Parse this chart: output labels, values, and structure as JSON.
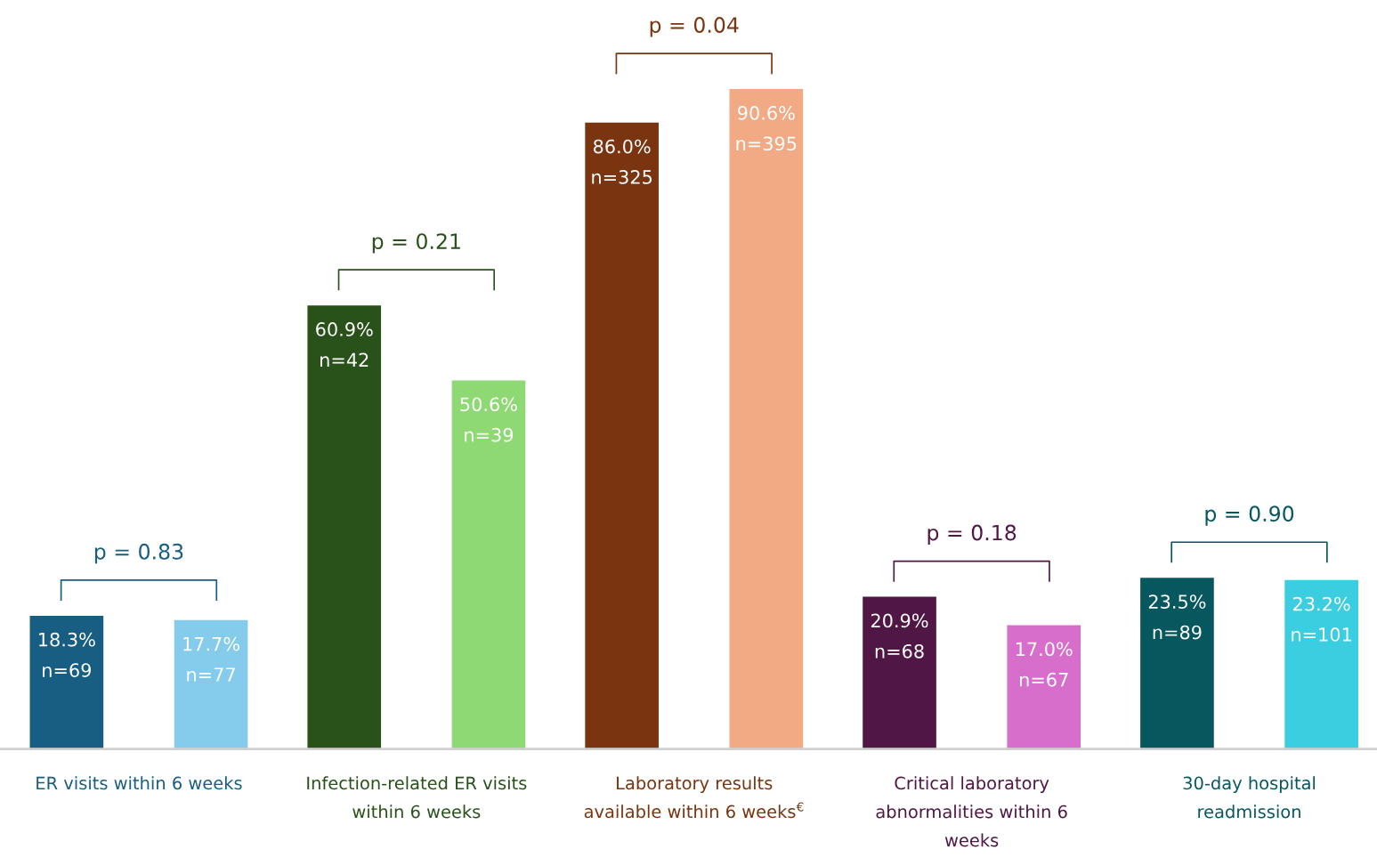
{
  "chart_data": {
    "type": "bar",
    "grid": false,
    "legend": false,
    "categories": [
      "ER visits within 6 weeks",
      "Infection-related ER visits\nwithin 6 weeks",
      "Laboratory results\navailable within 6 weeks$^{€}$",
      "Critical laboratory\nabnormalities within 6\nweeks",
      "30-day hospital\nreadmission"
    ],
    "series": [
      {
        "values": [
          18.3,
          60.9,
          86.0,
          20.9,
          23.5
        ],
        "colors": [
          "#175e82",
          "#285219",
          "#7a3410",
          "#501745",
          "#07575f"
        ],
        "value_labels": [
          "18.3%\nn=69",
          "60.9%\nn=42",
          "86.0%\nn=325",
          "20.9%\nn=68",
          "23.5%\nn=89"
        ]
      },
      {
        "values": [
          17.7,
          50.6,
          90.6,
          17.0,
          23.2
        ],
        "colors": [
          "#85cbeb",
          "#8ed973",
          "#f1aa84",
          "#d86ecc",
          "#3bcde0"
        ],
        "value_labels": [
          "17.7%\nn=77",
          "50.6%\nn=39",
          "90.6%\nn=395",
          "17.0%\nn=67",
          "23.2%\nn=101"
        ]
      }
    ],
    "annotations": [
      "p = 0.83",
      "p = 0.21",
      "p = 0.04",
      "p = 0.18",
      "p = 0.90"
    ]
  }
}
